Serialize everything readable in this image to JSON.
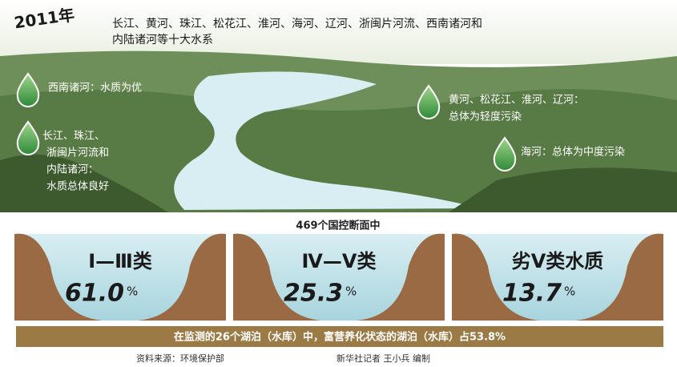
{
  "header": {
    "year": "2011年",
    "title_lines": [
      "长江、黄河、珠江、松花江、淮河、海河、辽河、浙闽片河流、西南诸河和",
      "内陆诸河等十大水系"
    ]
  },
  "annotations": [
    {
      "lines": [
        "西南诸河：水质为优"
      ]
    },
    {
      "lines": [
        "长江、珠江、",
        "浙闽片河流和",
        "内陆诸河：",
        "水质总体良好"
      ]
    },
    {
      "lines": [
        "黄河、松花江、淮河、辽河：",
        "总体为轻度污染"
      ]
    },
    {
      "lines": [
        "海河：总体为中度污染"
      ]
    }
  ],
  "subheading": "469个国控断面中",
  "panels": [
    {
      "label": "Ⅰ—Ⅲ类",
      "value": "61.0",
      "unit": "%"
    },
    {
      "label": "Ⅳ—Ⅴ类",
      "value": "25.3",
      "unit": "%"
    },
    {
      "label": "劣Ⅴ类水质",
      "value": "13.7",
      "unit": "%"
    }
  ],
  "footer_bar": "在监测的26个湖泊（水库）中，富营养化状态的湖泊（水库）占53.8%",
  "source": "资料来源：环境保护部",
  "credit": "新华社记者 王小兵 编制"
}
